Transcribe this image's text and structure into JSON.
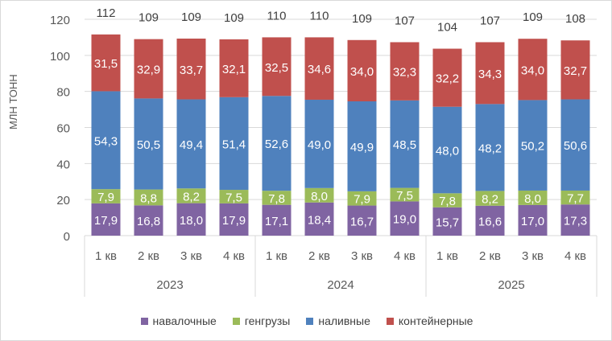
{
  "chart_data": {
    "type": "bar",
    "stacked": true,
    "ylabel": "МЛН ТОНН",
    "ylim": [
      0,
      120
    ],
    "yticks": [
      0,
      20,
      40,
      60,
      80,
      100,
      120
    ],
    "grid": true,
    "legend_position": "bottom",
    "categories": [
      "1 кв",
      "2 кв",
      "3 кв",
      "4 кв",
      "1 кв",
      "2 кв",
      "3 кв",
      "4 кв",
      "1 кв",
      "2 кв",
      "3 кв",
      "4 кв"
    ],
    "groups": [
      {
        "label": "2023",
        "count": 4
      },
      {
        "label": "2024",
        "count": 4
      },
      {
        "label": "2025",
        "count": 4
      }
    ],
    "series": [
      {
        "name": "навалочные",
        "color": "#8064a2",
        "values": [
          17.9,
          16.8,
          18.0,
          17.9,
          17.1,
          18.4,
          16.7,
          19.0,
          15.7,
          16.6,
          17.0,
          17.3
        ]
      },
      {
        "name": "генгрузы",
        "color": "#9bbb59",
        "values": [
          7.9,
          8.8,
          8.2,
          7.5,
          7.8,
          8.0,
          7.9,
          7.5,
          7.8,
          8.2,
          8.0,
          7.7
        ]
      },
      {
        "name": "наливные",
        "color": "#4f81bd",
        "values": [
          54.3,
          50.5,
          49.4,
          51.4,
          52.6,
          49.0,
          49.9,
          48.5,
          48.0,
          48.2,
          50.2,
          50.6
        ]
      },
      {
        "name": "контейнерные",
        "color": "#c0504d",
        "values": [
          31.5,
          32.9,
          33.7,
          32.1,
          32.5,
          34.6,
          34.0,
          32.3,
          32.2,
          34.3,
          34.0,
          32.7
        ]
      }
    ],
    "totals": [
      112,
      109,
      109,
      109,
      110,
      110,
      109,
      107,
      104,
      107,
      109,
      108
    ]
  }
}
